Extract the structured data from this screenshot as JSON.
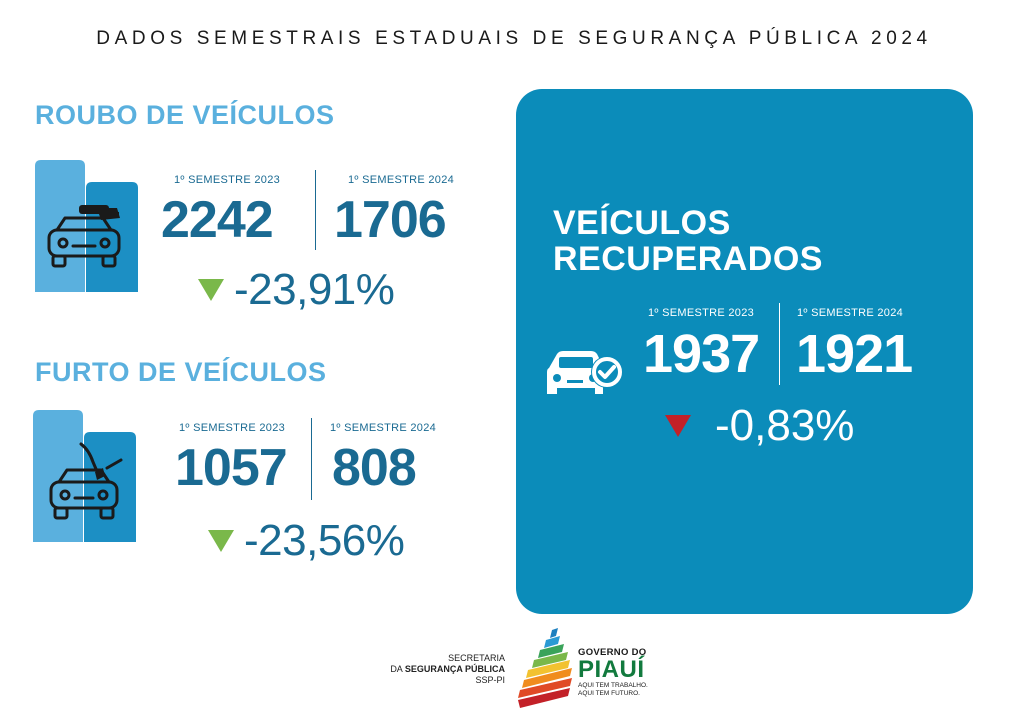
{
  "header": {
    "title": "DADOS SEMESTRAIS ESTADUAIS DE SEGURANÇA PÚBLICA 2024"
  },
  "roubo": {
    "title": "ROUBO DE VEÍCULOS",
    "label_2023": "1º SEMESTRE 2023",
    "label_2024": "1º SEMESTRE 2024",
    "value_2023": "2242",
    "value_2024": "1706",
    "change": "-23,91%",
    "icon": "car-theft-icon"
  },
  "furto": {
    "title": "FURTO DE VEÍCULOS",
    "label_2023": "1º SEMESTRE 2023",
    "label_2024": "1º SEMESTRE 2024",
    "value_2023": "1057",
    "value_2024": "808",
    "change": "-23,56%",
    "icon": "car-break-in-icon"
  },
  "recuperados": {
    "title_line1": "VEÍCULOS",
    "title_line2": "RECUPERADOS",
    "label_2023": "1º SEMESTRE 2023",
    "label_2024": "1º SEMESTRE 2024",
    "value_2023": "1937",
    "value_2024": "1921",
    "change": "-0,83%",
    "icon": "car-check-icon"
  },
  "footer": {
    "ssp_line1": "SECRETARIA",
    "ssp_line2_prefix": "DA ",
    "ssp_line2_bold": "SEGURANÇA PÚBLICA",
    "ssp_line3": "SSP-PI",
    "gov_line1": "GOVERNO DO",
    "gov_line2": "PIAUÍ",
    "gov_line3": "AQUI TEM TRABALHO.",
    "gov_line4": "AQUI TEM FUTURO."
  },
  "colors": {
    "accent_blue": "#5ab0de",
    "dark_blue": "#1a6a92",
    "panel_blue": "#0b8cba",
    "down_green": "#7ab84a",
    "down_red": "#c32128"
  }
}
